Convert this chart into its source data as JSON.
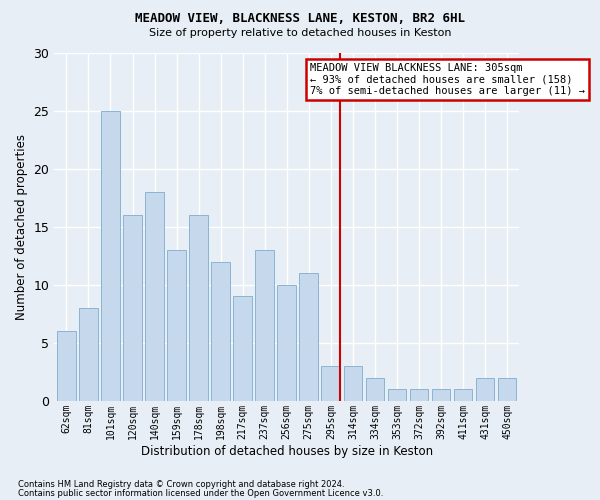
{
  "title1": "MEADOW VIEW, BLACKNESS LANE, KESTON, BR2 6HL",
  "title2": "Size of property relative to detached houses in Keston",
  "xlabel": "Distribution of detached houses by size in Keston",
  "ylabel": "Number of detached properties",
  "footer1": "Contains HM Land Registry data © Crown copyright and database right 2024.",
  "footer2": "Contains public sector information licensed under the Open Government Licence v3.0.",
  "categories": [
    "62sqm",
    "81sqm",
    "101sqm",
    "120sqm",
    "140sqm",
    "159sqm",
    "178sqm",
    "198sqm",
    "217sqm",
    "237sqm",
    "256sqm",
    "275sqm",
    "295sqm",
    "314sqm",
    "334sqm",
    "353sqm",
    "372sqm",
    "392sqm",
    "411sqm",
    "431sqm",
    "450sqm"
  ],
  "values": [
    6,
    8,
    25,
    16,
    18,
    13,
    16,
    12,
    9,
    13,
    10,
    11,
    3,
    3,
    2,
    1,
    1,
    1,
    1,
    2,
    2
  ],
  "bar_color": "#c6d9ec",
  "bar_edge_color": "#8ab4d4",
  "vline_color": "#cc0000",
  "annotation_title": "MEADOW VIEW BLACKNESS LANE: 305sqm",
  "annotation_line1": "← 93% of detached houses are smaller (158)",
  "annotation_line2": "7% of semi-detached houses are larger (11) →",
  "annotation_box_color": "#ffffff",
  "annotation_box_edge": "#cc0000",
  "ylim": [
    0,
    30
  ],
  "yticks": [
    0,
    5,
    10,
    15,
    20,
    25,
    30
  ],
  "background_color": "#e8eef5",
  "grid_color": "#ffffff"
}
